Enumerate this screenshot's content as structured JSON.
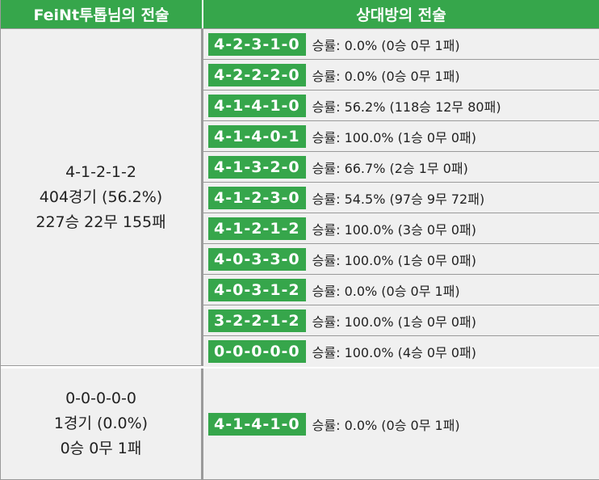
{
  "header": {
    "left": "FeiNt투톱님의 전술",
    "right": "상대방의 전술"
  },
  "groups": [
    {
      "formation": "4-1-2-1-2",
      "games": "404경기 (56.2%)",
      "record": "227승 22무 155패",
      "opponents": [
        {
          "formation": "4-2-3-1-0",
          "stat": "승률: 0.0% (0승 0무 1패)"
        },
        {
          "formation": "4-2-2-2-0",
          "stat": "승률: 0.0% (0승 0무 1패)"
        },
        {
          "formation": "4-1-4-1-0",
          "stat": "승률: 56.2% (118승 12무 80패)"
        },
        {
          "formation": "4-1-4-0-1",
          "stat": "승률: 100.0% (1승 0무 0패)"
        },
        {
          "formation": "4-1-3-2-0",
          "stat": "승률: 66.7% (2승 1무 0패)"
        },
        {
          "formation": "4-1-2-3-0",
          "stat": "승률: 54.5% (97승 9무 72패)"
        },
        {
          "formation": "4-1-2-1-2",
          "stat": "승률: 100.0% (3승 0무 0패)"
        },
        {
          "formation": "4-0-3-3-0",
          "stat": "승률: 100.0% (1승 0무 0패)"
        },
        {
          "formation": "4-0-3-1-2",
          "stat": "승률: 0.0% (0승 0무 1패)"
        },
        {
          "formation": "3-2-2-1-2",
          "stat": "승률: 100.0% (1승 0무 0패)"
        },
        {
          "formation": "0-0-0-0-0",
          "stat": "승률: 100.0% (4승 0무 0패)"
        }
      ]
    },
    {
      "formation": "0-0-0-0-0",
      "games": "1경기 (0.0%)",
      "record": "0승 0무 1패",
      "opponents": [
        {
          "formation": "4-1-4-1-0",
          "stat": "승률: 0.0% (0승 0무 1패)"
        }
      ]
    }
  ]
}
